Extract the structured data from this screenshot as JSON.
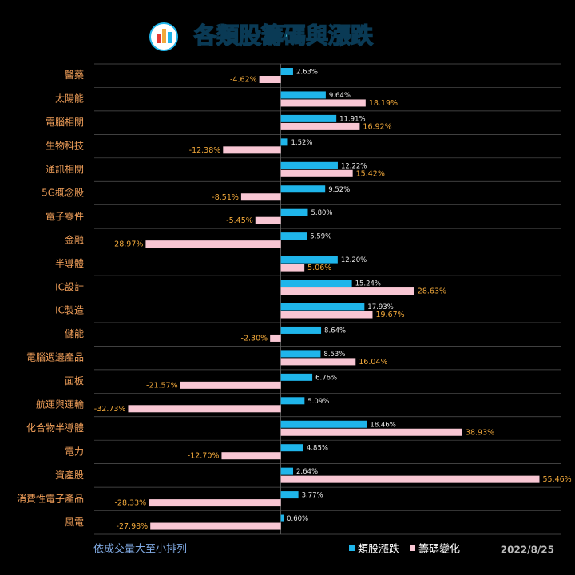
{
  "chart_data": {
    "type": "hbar",
    "title": "各類股籌碼與漲跌",
    "categories": [
      "醫藥",
      "太陽能",
      "電腦相關",
      "生物科技",
      "通訊相關",
      "5G概念股",
      "電子零件",
      "金融",
      "半導體",
      "IC設計",
      "IC製造",
      "儲能",
      "電腦週邊產品",
      "面板",
      "航運與運輸",
      "化合物半導體",
      "電力",
      "資產股",
      "消費性電子產品",
      "風電"
    ],
    "series": [
      {
        "name": "類股漲跌",
        "color": "#1fb5ea",
        "label_color": "#e8e8e8",
        "values": [
          2.63,
          9.64,
          11.91,
          1.52,
          12.22,
          9.52,
          5.8,
          5.59,
          12.2,
          15.24,
          17.93,
          8.64,
          8.53,
          6.76,
          5.09,
          18.46,
          4.85,
          2.64,
          3.77,
          0.6
        ],
        "value_labels": [
          "2.63%",
          "9.64%",
          "11.91%",
          "1.52%",
          "12.22%",
          "9.52%",
          "5.80%",
          "5.59%",
          "12.20%",
          "15.24%",
          "17.93%",
          "8.64%",
          "8.53%",
          "6.76%",
          "5.09%",
          "18.46%",
          "4.85%",
          "2.64%",
          "3.77%",
          "0.60%"
        ]
      },
      {
        "name": "籌碼變化",
        "color": "#f8c6d3",
        "label_color": "#f2a93b",
        "values": [
          -4.62,
          18.19,
          16.92,
          -12.38,
          15.42,
          -8.51,
          -5.45,
          -28.97,
          5.06,
          28.63,
          19.67,
          -2.3,
          16.04,
          -21.57,
          -32.73,
          38.93,
          -12.7,
          55.46,
          -28.33,
          -27.98
        ],
        "value_labels": [
          "-4.62%",
          "18.19%",
          "16.92%",
          "-12.38%",
          "15.42%",
          "-8.51%",
          "-5.45%",
          "-28.97%",
          "5.06%",
          "28.63%",
          "19.67%",
          "-2.30%",
          "16.04%",
          "-21.57%",
          "-32.73%",
          "38.93%",
          "-12.70%",
          "55.46%",
          "-28.33%",
          "-27.98%"
        ]
      }
    ],
    "xlim": [
      -40,
      60
    ],
    "note": "依成交量大至小排列",
    "date": "2022/8/25"
  }
}
